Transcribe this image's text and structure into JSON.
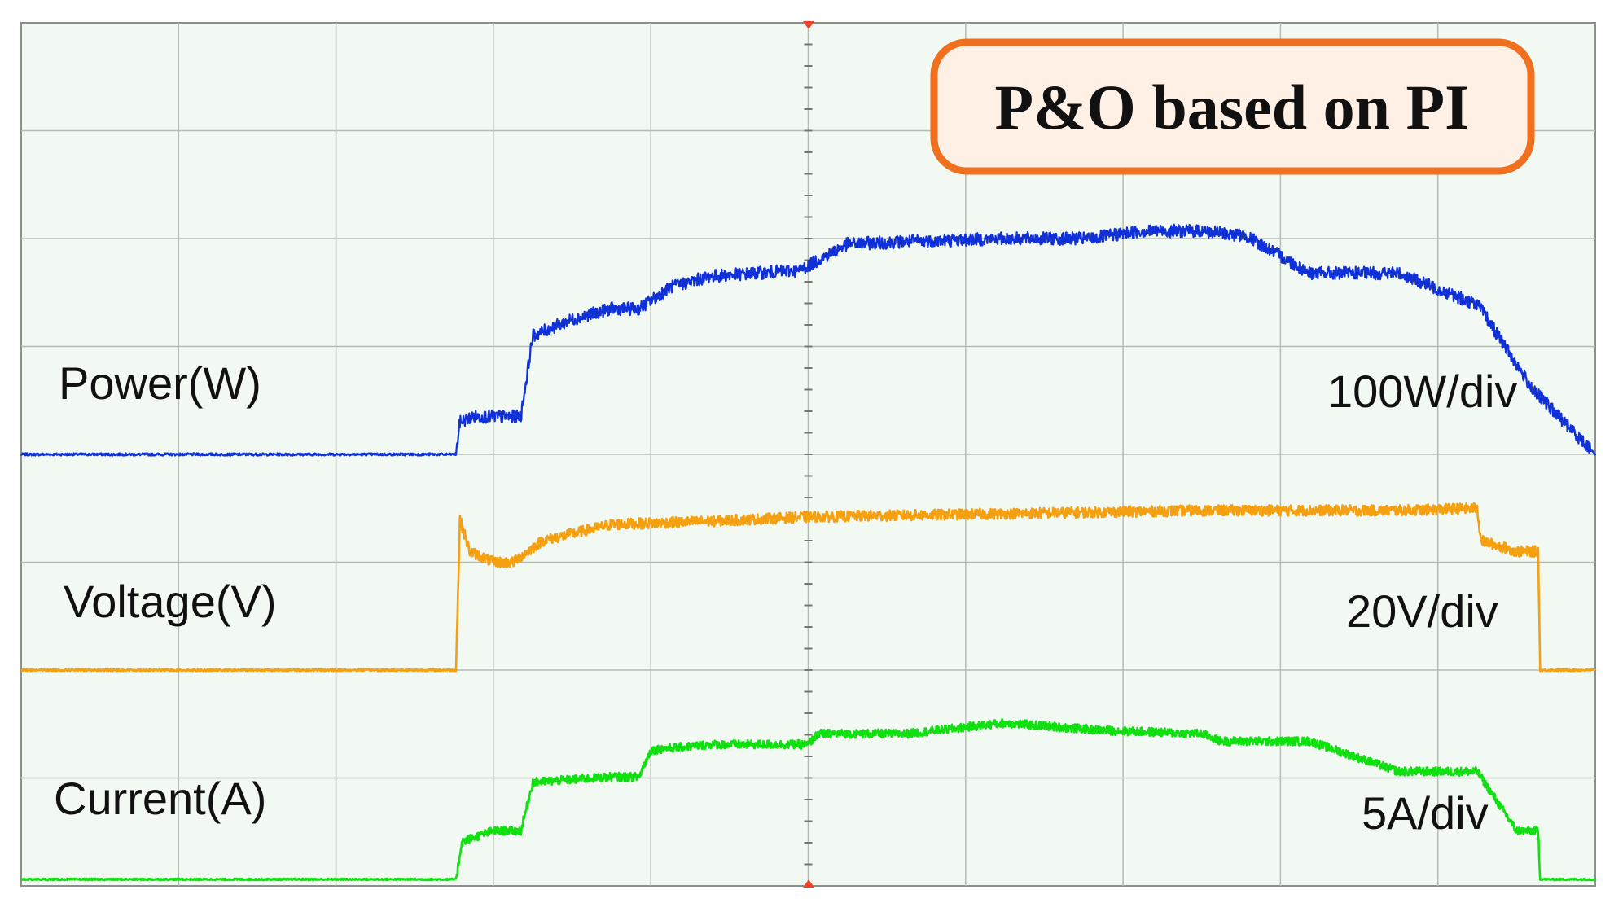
{
  "chart_data": {
    "type": "line",
    "title": "P&O based on PI",
    "grid": true,
    "x_divisions": 10,
    "y_divisions": 8,
    "series": [
      {
        "name": "Power(W)",
        "scale": "100W/div",
        "color": "#1030d8",
        "x_div": [
          0,
          4.42,
          4.46,
          4.6,
          5.0,
          5.08,
          5.2,
          5.6,
          6.0,
          6.28,
          6.6,
          7.0,
          7.8,
          7.9,
          8.4,
          9.2,
          9.28,
          10.0,
          10.8,
          10.86,
          11.4,
          12.0,
          12.4,
          12.44,
          13.1,
          14.0,
          14.76,
          14.8,
          15.4,
          15.42,
          16.0
        ],
        "y_div": [
          0,
          0,
          0.3,
          0.35,
          0.35,
          0.35,
          1.1,
          1.25,
          1.35,
          1.35,
          1.55,
          1.65,
          1.7,
          1.7,
          1.95,
          1.98,
          1.98,
          2.0,
          2.0,
          2.0,
          2.07,
          2.07,
          2.03,
          2.03,
          1.68,
          1.68,
          1.4,
          1.4,
          0.55,
          0.55,
          0
        ],
        "noise": 0.12
      },
      {
        "name": "Voltage(V)",
        "scale": "20V/div",
        "color": "#f5a010",
        "x_div": [
          0,
          4.42,
          4.46,
          4.56,
          4.8,
          5.0,
          5.3,
          6.0,
          7.0,
          8.0,
          10.0,
          12.0,
          14.0,
          14.8,
          14.84,
          15.2,
          15.42,
          15.44,
          16.0
        ],
        "y_div": [
          0,
          0,
          1.4,
          1.1,
          1.0,
          1.0,
          1.2,
          1.35,
          1.38,
          1.42,
          1.45,
          1.48,
          1.48,
          1.5,
          1.2,
          1.1,
          1.1,
          0,
          0
        ],
        "noise": 0.1
      },
      {
        "name": "Current(A)",
        "scale": "5A/div",
        "color": "#10e010",
        "x_div": [
          0,
          4.42,
          4.48,
          4.8,
          5.0,
          5.08,
          5.2,
          6.0,
          6.28,
          6.4,
          7.0,
          8.0,
          8.1,
          9.0,
          10.0,
          11.0,
          12.0,
          12.2,
          13.1,
          14.0,
          14.76,
          14.8,
          15.2,
          15.42,
          15.44,
          16.0
        ],
        "y_div": [
          0,
          0,
          0.35,
          0.45,
          0.45,
          0.45,
          0.9,
          0.95,
          0.95,
          1.2,
          1.25,
          1.25,
          1.35,
          1.35,
          1.45,
          1.38,
          1.35,
          1.28,
          1.28,
          1.0,
          1.0,
          1.0,
          0.45,
          0.45,
          0.0,
          0.0
        ],
        "noise": 0.08
      }
    ]
  },
  "colors": {
    "background": "#f2f8f2",
    "grid": "#b4bcb4",
    "title_box_border": "#f07020",
    "title_box_fill": "#fff0e6"
  }
}
